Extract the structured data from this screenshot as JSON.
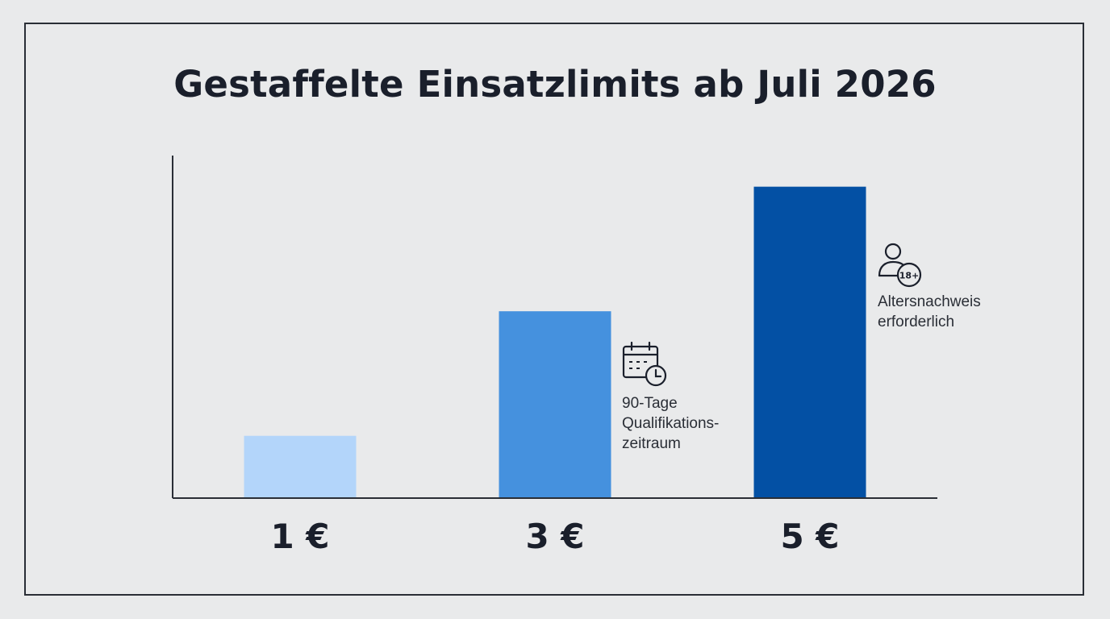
{
  "chart_data": {
    "type": "bar",
    "title": "Gestaffelte Einsatzlimits ab Juli 2026",
    "categories": [
      "1 €",
      "3 €",
      "5 €"
    ],
    "values": [
      1,
      3,
      5
    ],
    "ylim": [
      0,
      5.5
    ],
    "colors": [
      "#b3d5fa",
      "#4591de",
      "#0350a4"
    ],
    "axis_color": "#2a2e36",
    "grid": false,
    "legend": "none",
    "annotations": [
      {
        "category": "3 €",
        "icon": "calendar-clock-icon",
        "lines": [
          "90-Tage",
          "Qualifikations-",
          "zeitraum"
        ]
      },
      {
        "category": "5 €",
        "icon": "person-18plus-icon",
        "badge": "18+",
        "lines": [
          "Altersnachweis",
          "erforderlich"
        ]
      }
    ]
  }
}
